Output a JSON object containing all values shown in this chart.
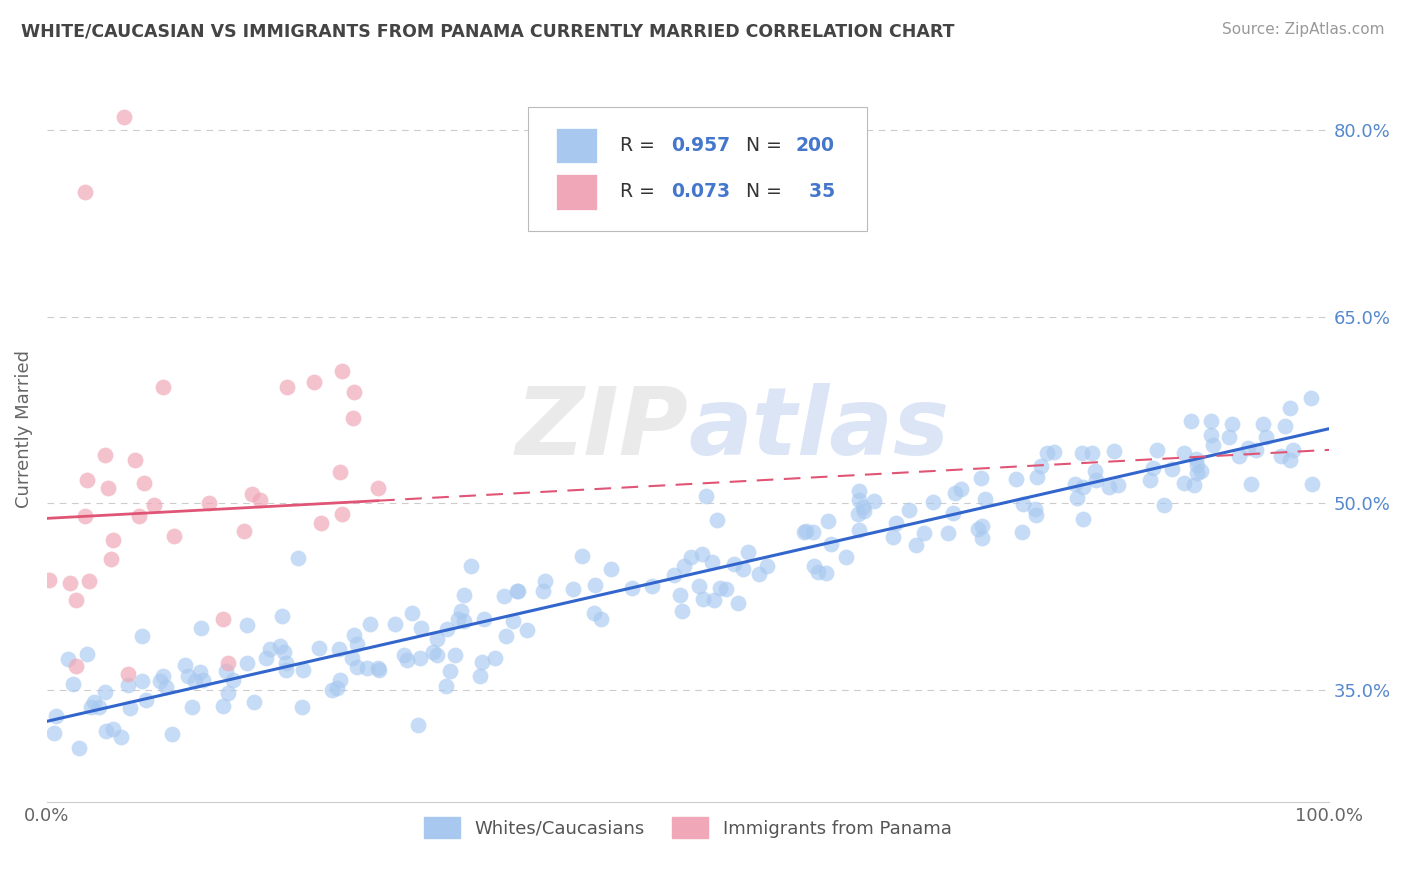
{
  "title": "WHITE/CAUCASIAN VS IMMIGRANTS FROM PANAMA CURRENTLY MARRIED CORRELATION CHART",
  "source": "Source: ZipAtlas.com",
  "ylabel": "Currently Married",
  "blue_R": 0.957,
  "blue_N": 200,
  "pink_R": 0.073,
  "pink_N": 35,
  "blue_color": "#a8c8f0",
  "pink_color": "#f0a8b8",
  "blue_line_color": "#3366cc",
  "pink_line_color": "#e05575",
  "xlim": [
    0.0,
    1.0
  ],
  "ylim": [
    0.26,
    0.86
  ],
  "y_ticks": [
    0.35,
    0.5,
    0.65,
    0.8
  ],
  "y_tick_labels": [
    "35.0%",
    "50.0%",
    "65.0%",
    "80.0%"
  ],
  "x_ticks": [
    0.0,
    1.0
  ],
  "x_tick_labels": [
    "0.0%",
    "100.0%"
  ],
  "watermark": "ZIPatlas",
  "legend_label_blue": "Whites/Caucasians",
  "legend_label_pink": "Immigrants from Panama",
  "blue_seed": 42,
  "pink_seed": 123,
  "blue_slope": 0.235,
  "blue_intercept": 0.325,
  "blue_noise": 0.022,
  "pink_slope": 0.055,
  "pink_intercept": 0.488,
  "pink_noise": 0.065,
  "label_color_black": "#333333",
  "label_color_blue": "#4477cc",
  "tick_color_blue": "#5588cc",
  "grid_color": "#cccccc",
  "title_color": "#444444",
  "source_color": "#999999"
}
